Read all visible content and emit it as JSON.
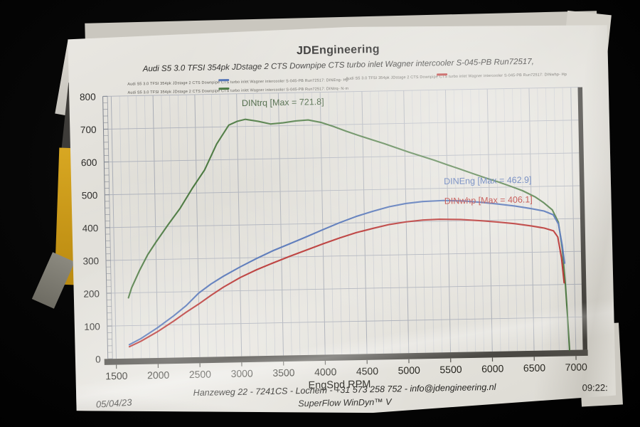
{
  "header": {
    "title": "JDEngineering",
    "subtitle": "Audi S5 3.0 TFSI 354pk   JDstage 2   CTS Downpipe CTS turbo inlet Wagner intercooler   S-045-PB   Run72517,"
  },
  "legend": {
    "entries": [
      {
        "text": "Audi S5 3.0 TFSI 354pk   JDstage 2   CTS Downpipe CTS turbo inlet Wagner intercooler   S-045-PB   Run72517:  DINEng-  Hp",
        "color": "#4a6cb3"
      },
      {
        "text": "Audi S5 3.0 TFSI 354pk   JDstage 2   CTS Downpipe CTS turbo inlet Wagner intercooler   S-045-PB   Run72517:  DINwhp-  Hp",
        "color": "#b52a28"
      },
      {
        "text": "Audi S5 3.0 TFSI 354pk   JDstage 2   CTS Downpipe CTS turbo inlet Wagner intercooler   S-045-PB   Run72517:  DINtrq-  N·m",
        "color": "#3f7038"
      }
    ]
  },
  "footer": {
    "address": "Hanzeweg 22 - 7241CS - Lochem - +31 573 258 752 - info@jdengineering.nl",
    "software": "SuperFlow WinDyn™ V"
  },
  "photo": {
    "date_stamp": "05/04/23",
    "time_stamp": "09:22:"
  },
  "chart_data": {
    "type": "line",
    "xlabel": "EngSpd  RPM",
    "ylabel": "",
    "xlim": [
      1400,
      7100
    ],
    "ylim": [
      0,
      800
    ],
    "x_ticks": [
      1500,
      2000,
      2500,
      3000,
      3500,
      4000,
      4500,
      5000,
      5500,
      6000,
      6500,
      7000
    ],
    "y_ticks": [
      0,
      100,
      200,
      300,
      400,
      500,
      600,
      700,
      800
    ],
    "grid": true,
    "series": [
      {
        "name": "DINtrq",
        "unit": "N·m",
        "max": 721.8,
        "label": "DINtrq [Max = 721.8]",
        "label_pos": [
          3060,
          762
        ],
        "color": "#47763c",
        "label_color": "#3c5a36",
        "points": [
          [
            1660,
            185
          ],
          [
            1700,
            215
          ],
          [
            1800,
            268
          ],
          [
            1900,
            315
          ],
          [
            2000,
            352
          ],
          [
            2150,
            405
          ],
          [
            2300,
            455
          ],
          [
            2450,
            515
          ],
          [
            2600,
            570
          ],
          [
            2750,
            648
          ],
          [
            2900,
            705
          ],
          [
            3000,
            716
          ],
          [
            3100,
            721.8
          ],
          [
            3250,
            715
          ],
          [
            3400,
            706
          ],
          [
            3550,
            709
          ],
          [
            3700,
            714
          ],
          [
            3850,
            716
          ],
          [
            4000,
            708
          ],
          [
            4150,
            695
          ],
          [
            4300,
            680
          ],
          [
            4450,
            666
          ],
          [
            4600,
            653
          ],
          [
            4750,
            640
          ],
          [
            4900,
            626
          ],
          [
            5050,
            612
          ],
          [
            5200,
            599
          ],
          [
            5350,
            586
          ],
          [
            5500,
            572
          ],
          [
            5650,
            558
          ],
          [
            5800,
            544
          ],
          [
            5950,
            530
          ],
          [
            6100,
            517
          ],
          [
            6250,
            503
          ],
          [
            6400,
            488
          ],
          [
            6550,
            468
          ],
          [
            6650,
            450
          ],
          [
            6750,
            428
          ],
          [
            6820,
            390
          ],
          [
            6860,
            310
          ],
          [
            6890,
            200
          ],
          [
            6910,
            90
          ],
          [
            6925,
            0
          ]
        ]
      },
      {
        "name": "DINEng",
        "unit": "Hp",
        "max": 462.9,
        "label": "DINEng [Max = 462.9]",
        "label_pos": [
          5460,
          512
        ],
        "color": "#4a6cb3",
        "label_color": "#4a6ab0",
        "points": [
          [
            1660,
            42
          ],
          [
            1800,
            60
          ],
          [
            2000,
            92
          ],
          [
            2200,
            128
          ],
          [
            2350,
            158
          ],
          [
            2500,
            195
          ],
          [
            2650,
            222
          ],
          [
            2800,
            245
          ],
          [
            3000,
            272
          ],
          [
            3200,
            297
          ],
          [
            3400,
            320
          ],
          [
            3600,
            340
          ],
          [
            3800,
            360
          ],
          [
            4000,
            381
          ],
          [
            4200,
            401
          ],
          [
            4400,
            419
          ],
          [
            4600,
            434
          ],
          [
            4800,
            447
          ],
          [
            5000,
            456
          ],
          [
            5200,
            461
          ],
          [
            5450,
            462.9
          ],
          [
            5700,
            460
          ],
          [
            5900,
            455
          ],
          [
            6100,
            449
          ],
          [
            6300,
            442
          ],
          [
            6500,
            433
          ],
          [
            6650,
            425
          ],
          [
            6760,
            413
          ],
          [
            6820,
            385
          ],
          [
            6860,
            320
          ],
          [
            6885,
            265
          ]
        ]
      },
      {
        "name": "DINwhp",
        "unit": "Hp",
        "max": 406.1,
        "label": "DINwhp [Max = 406.1]",
        "label_pos": [
          5460,
          452
        ],
        "color": "#b52a28",
        "label_color": "#b8302c",
        "points": [
          [
            1660,
            36
          ],
          [
            1800,
            52
          ],
          [
            2000,
            80
          ],
          [
            2200,
            112
          ],
          [
            2350,
            138
          ],
          [
            2500,
            162
          ],
          [
            2650,
            188
          ],
          [
            2800,
            212
          ],
          [
            3000,
            240
          ],
          [
            3200,
            263
          ],
          [
            3400,
            283
          ],
          [
            3600,
            302
          ],
          [
            3800,
            320
          ],
          [
            4000,
            338
          ],
          [
            4200,
            355
          ],
          [
            4400,
            370
          ],
          [
            4600,
            382
          ],
          [
            4800,
            393
          ],
          [
            5000,
            400
          ],
          [
            5200,
            404.5
          ],
          [
            5400,
            406.1
          ],
          [
            5650,
            404
          ],
          [
            5900,
            399
          ],
          [
            6100,
            394
          ],
          [
            6300,
            388
          ],
          [
            6500,
            380
          ],
          [
            6650,
            373
          ],
          [
            6760,
            364
          ],
          [
            6810,
            345
          ],
          [
            6850,
            280
          ],
          [
            6875,
            205
          ]
        ]
      }
    ]
  }
}
